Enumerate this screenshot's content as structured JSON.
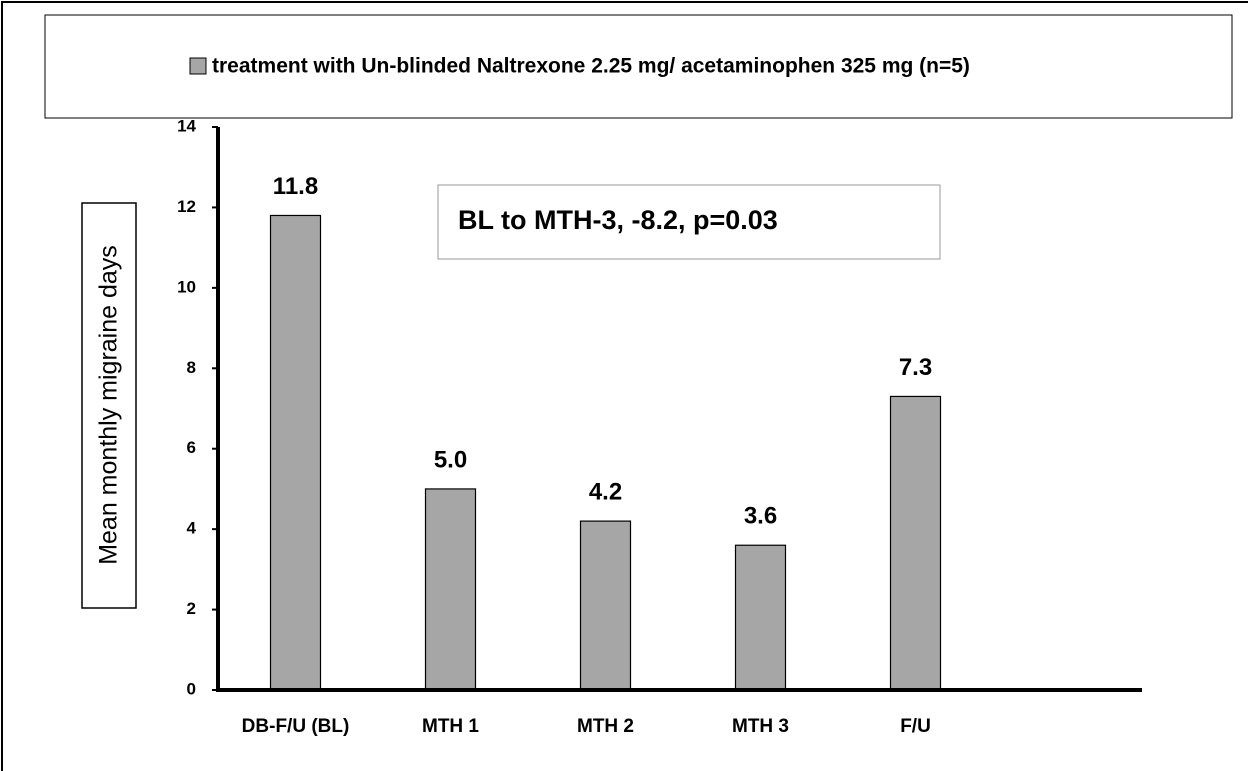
{
  "chart_data": {
    "type": "bar",
    "legend_label": "treatment with Un-blinded Naltrexone 2.25 mg/ acetaminophen 325 mg (n=5)",
    "annotation": "BL to MTH-3, -8.2, p=0.03",
    "y_label": "Mean monthly migraine days",
    "categories": [
      "DB-F/U (BL)",
      "MTH 1",
      "MTH 2",
      "MTH 3",
      "F/U"
    ],
    "values": [
      11.8,
      5.0,
      4.2,
      3.6,
      7.3
    ],
    "value_labels": [
      "11.8",
      "5.0",
      "4.2",
      "3.6",
      "7.3"
    ],
    "color": "#a6a6a6",
    "ylim": [
      0,
      14
    ],
    "yticks": [
      0,
      2,
      4,
      6,
      8,
      10,
      12,
      14
    ],
    "grid": false
  }
}
